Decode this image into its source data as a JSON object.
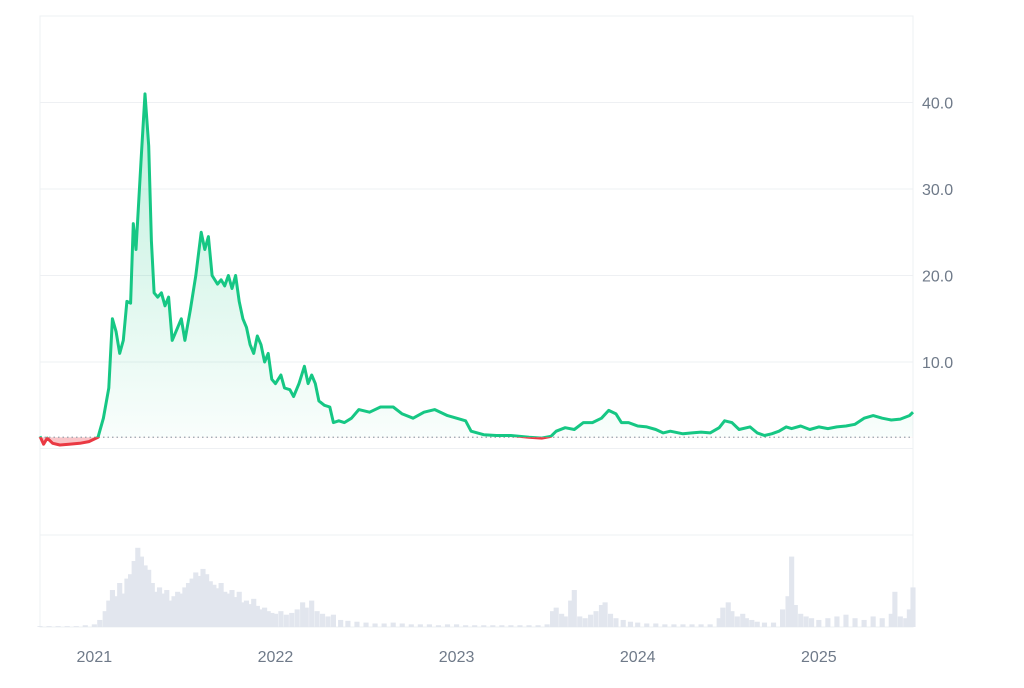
{
  "chart_data": {
    "type": "line",
    "title": "",
    "xlabel": "",
    "ylabel": "",
    "baseline": 1.3,
    "ylim": [
      -10,
      50
    ],
    "y_ticks": [
      {
        "value": 10,
        "label": "10.0"
      },
      {
        "value": 20,
        "label": "20.0"
      },
      {
        "value": 30,
        "label": "30.0"
      },
      {
        "value": 40,
        "label": "40.0"
      }
    ],
    "x_ticks": [
      {
        "value": 2021.0,
        "label": "2021"
      },
      {
        "value": 2022.0,
        "label": "2022"
      },
      {
        "value": 2023.0,
        "label": "2023"
      },
      {
        "value": 2024.0,
        "label": "2024"
      },
      {
        "value": 2025.0,
        "label": "2025"
      }
    ],
    "xlim": [
      2020.7,
      2025.52
    ],
    "grid": true,
    "colors": {
      "above": "#16c784",
      "below": "#ea3943",
      "grid": "#eef0f3",
      "volume": "#e2e6ee",
      "baseline": "#9aa3ad"
    },
    "series": [
      {
        "values": [
          [
            2020.7,
            1.4
          ],
          [
            2020.72,
            0.5
          ],
          [
            2020.74,
            1.2
          ],
          [
            2020.77,
            0.6
          ],
          [
            2020.81,
            0.4
          ],
          [
            2020.86,
            0.5
          ],
          [
            2020.92,
            0.6
          ],
          [
            2020.97,
            0.8
          ],
          [
            2021.02,
            1.3
          ],
          [
            2021.05,
            3.5
          ],
          [
            2021.08,
            7.0
          ],
          [
            2021.1,
            15.0
          ],
          [
            2021.12,
            13.5
          ],
          [
            2021.14,
            11.0
          ],
          [
            2021.16,
            12.5
          ],
          [
            2021.18,
            17.0
          ],
          [
            2021.2,
            16.8
          ],
          [
            2021.215,
            26.0
          ],
          [
            2021.23,
            23.0
          ],
          [
            2021.26,
            34.0
          ],
          [
            2021.28,
            41.0
          ],
          [
            2021.3,
            35.0
          ],
          [
            2021.315,
            24.0
          ],
          [
            2021.33,
            18.0
          ],
          [
            2021.35,
            17.5
          ],
          [
            2021.37,
            18.0
          ],
          [
            2021.39,
            16.5
          ],
          [
            2021.41,
            17.5
          ],
          [
            2021.43,
            12.5
          ],
          [
            2021.46,
            14.0
          ],
          [
            2021.48,
            15.0
          ],
          [
            2021.5,
            12.5
          ],
          [
            2021.53,
            16.0
          ],
          [
            2021.56,
            20.0
          ],
          [
            2021.59,
            25.0
          ],
          [
            2021.61,
            23.0
          ],
          [
            2021.63,
            24.5
          ],
          [
            2021.65,
            20.0
          ],
          [
            2021.68,
            19.0
          ],
          [
            2021.7,
            19.5
          ],
          [
            2021.72,
            18.8
          ],
          [
            2021.74,
            20.0
          ],
          [
            2021.76,
            18.5
          ],
          [
            2021.78,
            20.0
          ],
          [
            2021.8,
            17.0
          ],
          [
            2021.82,
            15.0
          ],
          [
            2021.84,
            14.0
          ],
          [
            2021.86,
            12.0
          ],
          [
            2021.88,
            11.0
          ],
          [
            2021.9,
            13.0
          ],
          [
            2021.92,
            12.0
          ],
          [
            2021.94,
            10.0
          ],
          [
            2021.96,
            11.0
          ],
          [
            2021.98,
            8.0
          ],
          [
            2022.0,
            7.5
          ],
          [
            2022.03,
            8.5
          ],
          [
            2022.05,
            7.0
          ],
          [
            2022.08,
            6.8
          ],
          [
            2022.1,
            6.0
          ],
          [
            2022.13,
            7.5
          ],
          [
            2022.16,
            9.5
          ],
          [
            2022.18,
            7.5
          ],
          [
            2022.2,
            8.5
          ],
          [
            2022.22,
            7.5
          ],
          [
            2022.24,
            5.5
          ],
          [
            2022.27,
            5.0
          ],
          [
            2022.3,
            4.8
          ],
          [
            2022.32,
            3.0
          ],
          [
            2022.35,
            3.2
          ],
          [
            2022.38,
            3.0
          ],
          [
            2022.42,
            3.5
          ],
          [
            2022.46,
            4.5
          ],
          [
            2022.52,
            4.2
          ],
          [
            2022.58,
            4.8
          ],
          [
            2022.65,
            4.8
          ],
          [
            2022.7,
            4.0
          ],
          [
            2022.76,
            3.5
          ],
          [
            2022.82,
            4.2
          ],
          [
            2022.88,
            4.5
          ],
          [
            2022.95,
            3.8
          ],
          [
            2023.0,
            3.5
          ],
          [
            2023.05,
            3.2
          ],
          [
            2023.08,
            2.0
          ],
          [
            2023.15,
            1.6
          ],
          [
            2023.22,
            1.5
          ],
          [
            2023.3,
            1.5
          ],
          [
            2023.4,
            1.3
          ],
          [
            2023.47,
            1.2
          ],
          [
            2023.52,
            1.4
          ],
          [
            2023.55,
            2.0
          ],
          [
            2023.6,
            2.4
          ],
          [
            2023.65,
            2.2
          ],
          [
            2023.7,
            3.0
          ],
          [
            2023.75,
            3.0
          ],
          [
            2023.8,
            3.5
          ],
          [
            2023.84,
            4.4
          ],
          [
            2023.88,
            4.0
          ],
          [
            2023.91,
            3.0
          ],
          [
            2023.95,
            3.0
          ],
          [
            2024.0,
            2.6
          ],
          [
            2024.05,
            2.5
          ],
          [
            2024.1,
            2.2
          ],
          [
            2024.14,
            1.8
          ],
          [
            2024.18,
            2.0
          ],
          [
            2024.25,
            1.7
          ],
          [
            2024.3,
            1.8
          ],
          [
            2024.35,
            1.9
          ],
          [
            2024.4,
            1.8
          ],
          [
            2024.45,
            2.4
          ],
          [
            2024.48,
            3.2
          ],
          [
            2024.52,
            3.0
          ],
          [
            2024.56,
            2.2
          ],
          [
            2024.62,
            2.5
          ],
          [
            2024.66,
            1.8
          ],
          [
            2024.7,
            1.5
          ],
          [
            2024.74,
            1.7
          ],
          [
            2024.78,
            2.0
          ],
          [
            2024.82,
            2.5
          ],
          [
            2024.85,
            2.3
          ],
          [
            2024.9,
            2.6
          ],
          [
            2024.95,
            2.2
          ],
          [
            2025.0,
            2.5
          ],
          [
            2025.05,
            2.3
          ],
          [
            2025.1,
            2.5
          ],
          [
            2025.15,
            2.6
          ],
          [
            2025.2,
            2.8
          ],
          [
            2025.25,
            3.5
          ],
          [
            2025.3,
            3.8
          ],
          [
            2025.35,
            3.5
          ],
          [
            2025.4,
            3.3
          ],
          [
            2025.45,
            3.4
          ],
          [
            2025.5,
            3.8
          ],
          [
            2025.52,
            4.2
          ]
        ]
      }
    ],
    "volume": {
      "ylim": [
        0,
        100
      ],
      "values": [
        [
          2020.7,
          1
        ],
        [
          2020.75,
          1
        ],
        [
          2020.8,
          1
        ],
        [
          2020.85,
          1
        ],
        [
          2020.9,
          1
        ],
        [
          2020.95,
          2
        ],
        [
          2021.0,
          3
        ],
        [
          2021.03,
          8
        ],
        [
          2021.06,
          18
        ],
        [
          2021.08,
          30
        ],
        [
          2021.1,
          42
        ],
        [
          2021.12,
          35
        ],
        [
          2021.14,
          50
        ],
        [
          2021.16,
          38
        ],
        [
          2021.18,
          55
        ],
        [
          2021.2,
          60
        ],
        [
          2021.22,
          75
        ],
        [
          2021.24,
          90
        ],
        [
          2021.26,
          80
        ],
        [
          2021.28,
          70
        ],
        [
          2021.3,
          65
        ],
        [
          2021.32,
          50
        ],
        [
          2021.34,
          40
        ],
        [
          2021.36,
          45
        ],
        [
          2021.38,
          38
        ],
        [
          2021.4,
          42
        ],
        [
          2021.42,
          30
        ],
        [
          2021.44,
          35
        ],
        [
          2021.46,
          40
        ],
        [
          2021.48,
          38
        ],
        [
          2021.5,
          45
        ],
        [
          2021.52,
          50
        ],
        [
          2021.54,
          55
        ],
        [
          2021.56,
          62
        ],
        [
          2021.58,
          58
        ],
        [
          2021.6,
          66
        ],
        [
          2021.62,
          60
        ],
        [
          2021.64,
          52
        ],
        [
          2021.66,
          48
        ],
        [
          2021.68,
          44
        ],
        [
          2021.7,
          50
        ],
        [
          2021.72,
          40
        ],
        [
          2021.74,
          38
        ],
        [
          2021.76,
          42
        ],
        [
          2021.78,
          34
        ],
        [
          2021.8,
          40
        ],
        [
          2021.82,
          28
        ],
        [
          2021.84,
          30
        ],
        [
          2021.86,
          26
        ],
        [
          2021.88,
          32
        ],
        [
          2021.9,
          24
        ],
        [
          2021.92,
          20
        ],
        [
          2021.94,
          22
        ],
        [
          2021.96,
          18
        ],
        [
          2021.98,
          16
        ],
        [
          2022.0,
          15
        ],
        [
          2022.03,
          18
        ],
        [
          2022.06,
          14
        ],
        [
          2022.09,
          16
        ],
        [
          2022.12,
          20
        ],
        [
          2022.15,
          28
        ],
        [
          2022.17,
          22
        ],
        [
          2022.2,
          30
        ],
        [
          2022.23,
          18
        ],
        [
          2022.26,
          15
        ],
        [
          2022.29,
          12
        ],
        [
          2022.32,
          14
        ],
        [
          2022.36,
          8
        ],
        [
          2022.4,
          7
        ],
        [
          2022.45,
          6
        ],
        [
          2022.5,
          5
        ],
        [
          2022.55,
          4
        ],
        [
          2022.6,
          4
        ],
        [
          2022.65,
          5
        ],
        [
          2022.7,
          4
        ],
        [
          2022.75,
          3
        ],
        [
          2022.8,
          3
        ],
        [
          2022.85,
          3
        ],
        [
          2022.9,
          2
        ],
        [
          2022.95,
          3
        ],
        [
          2023.0,
          3
        ],
        [
          2023.05,
          2
        ],
        [
          2023.1,
          2
        ],
        [
          2023.15,
          2
        ],
        [
          2023.2,
          2
        ],
        [
          2023.25,
          2
        ],
        [
          2023.3,
          2
        ],
        [
          2023.35,
          2
        ],
        [
          2023.4,
          2
        ],
        [
          2023.45,
          2
        ],
        [
          2023.5,
          3
        ],
        [
          2023.53,
          18
        ],
        [
          2023.55,
          22
        ],
        [
          2023.58,
          15
        ],
        [
          2023.6,
          12
        ],
        [
          2023.63,
          30
        ],
        [
          2023.65,
          42
        ],
        [
          2023.68,
          12
        ],
        [
          2023.71,
          10
        ],
        [
          2023.74,
          14
        ],
        [
          2023.77,
          18
        ],
        [
          2023.8,
          25
        ],
        [
          2023.82,
          28
        ],
        [
          2023.85,
          15
        ],
        [
          2023.88,
          10
        ],
        [
          2023.92,
          8
        ],
        [
          2023.96,
          6
        ],
        [
          2024.0,
          5
        ],
        [
          2024.05,
          4
        ],
        [
          2024.1,
          4
        ],
        [
          2024.15,
          3
        ],
        [
          2024.2,
          3
        ],
        [
          2024.25,
          3
        ],
        [
          2024.3,
          3
        ],
        [
          2024.35,
          3
        ],
        [
          2024.4,
          3
        ],
        [
          2024.45,
          10
        ],
        [
          2024.47,
          22
        ],
        [
          2024.5,
          28
        ],
        [
          2024.52,
          18
        ],
        [
          2024.55,
          12
        ],
        [
          2024.58,
          15
        ],
        [
          2024.6,
          10
        ],
        [
          2024.63,
          8
        ],
        [
          2024.66,
          6
        ],
        [
          2024.7,
          5
        ],
        [
          2024.75,
          5
        ],
        [
          2024.8,
          20
        ],
        [
          2024.83,
          35
        ],
        [
          2024.85,
          80
        ],
        [
          2024.87,
          25
        ],
        [
          2024.9,
          15
        ],
        [
          2024.93,
          12
        ],
        [
          2024.96,
          10
        ],
        [
          2025.0,
          8
        ],
        [
          2025.05,
          10
        ],
        [
          2025.1,
          12
        ],
        [
          2025.15,
          14
        ],
        [
          2025.2,
          10
        ],
        [
          2025.25,
          8
        ],
        [
          2025.3,
          12
        ],
        [
          2025.35,
          10
        ],
        [
          2025.4,
          15
        ],
        [
          2025.42,
          40
        ],
        [
          2025.45,
          12
        ],
        [
          2025.48,
          10
        ],
        [
          2025.5,
          20
        ],
        [
          2025.52,
          45
        ]
      ]
    }
  }
}
